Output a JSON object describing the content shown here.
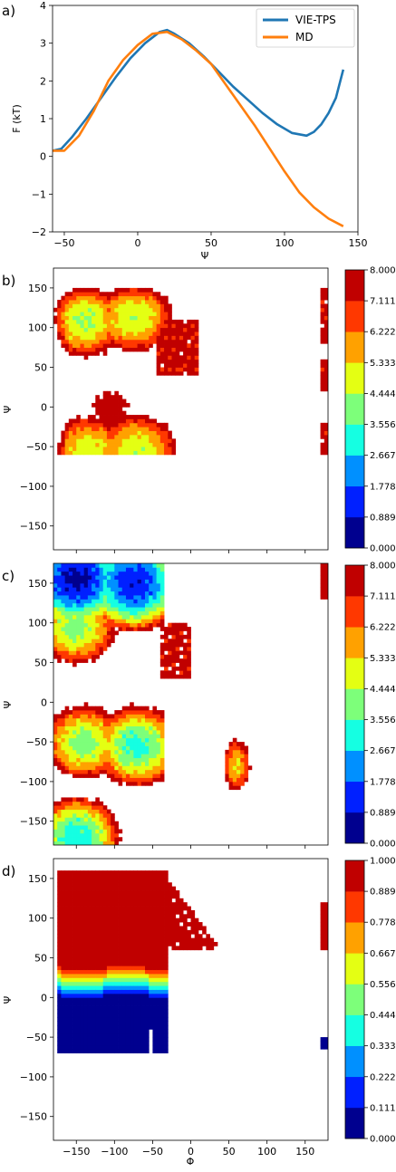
{
  "panel_labels": [
    "a)",
    "b)",
    "c)",
    "d)"
  ],
  "chart_data": [
    {
      "type": "line",
      "panel": "a)",
      "xlabel": "Ψ",
      "ylabel": "F (kT)",
      "xlim": [
        -58,
        150
      ],
      "ylim": [
        -2,
        4
      ],
      "xticks": [
        "−50",
        "0",
        "50",
        "100",
        "150"
      ],
      "yticks": [
        "−2",
        "−1",
        "0",
        "1",
        "2",
        "3",
        "4"
      ],
      "legend": "top-right",
      "series": [
        {
          "name": "VIE-TPS",
          "color": "#1f77b4",
          "x": [
            -58,
            -52,
            -45,
            -35,
            -25,
            -15,
            -5,
            5,
            15,
            20,
            25,
            35,
            45,
            55,
            65,
            75,
            85,
            95,
            105,
            115,
            120,
            125,
            130,
            135,
            140
          ],
          "y": [
            0.15,
            0.2,
            0.5,
            1.0,
            1.55,
            2.1,
            2.6,
            3.0,
            3.3,
            3.35,
            3.25,
            3.0,
            2.65,
            2.25,
            1.85,
            1.5,
            1.15,
            0.85,
            0.62,
            0.55,
            0.65,
            0.85,
            1.15,
            1.55,
            2.3
          ]
        },
        {
          "name": "MD",
          "color": "#ff7f0e",
          "x": [
            -58,
            -50,
            -40,
            -30,
            -20,
            -10,
            0,
            10,
            20,
            30,
            40,
            50,
            60,
            70,
            80,
            90,
            100,
            110,
            120,
            130,
            140
          ],
          "y": [
            0.15,
            0.15,
            0.55,
            1.2,
            2.0,
            2.55,
            2.95,
            3.25,
            3.3,
            3.1,
            2.8,
            2.45,
            1.9,
            1.35,
            0.8,
            0.2,
            -0.4,
            -0.95,
            -1.35,
            -1.65,
            -1.85
          ]
        }
      ]
    },
    {
      "type": "heatmap",
      "panel": "b)",
      "ylabel": "Ψ",
      "xlim": [
        -180,
        180
      ],
      "ylim": [
        -180,
        175
      ],
      "yticks": [
        "150",
        "100",
        "50",
        "0",
        "−50",
        "−100",
        "−150"
      ],
      "colorbar": {
        "min": 0,
        "max": 8,
        "levels": [
          "0.000",
          "0.889",
          "1.778",
          "2.667",
          "3.556",
          "4.444",
          "5.333",
          "6.222",
          "7.111",
          "8.000"
        ]
      },
      "minima": [
        {
          "phi": -140,
          "psi": 110,
          "depth": 4.3
        },
        {
          "phi": -75,
          "psi": 115,
          "depth": 4.5
        },
        {
          "phi": -105,
          "psi": 0,
          "depth": 7.4
        },
        {
          "phi": -135,
          "psi": -55,
          "depth": 4.8
        },
        {
          "phi": -70,
          "psi": -55,
          "depth": 4.5
        }
      ]
    },
    {
      "type": "heatmap",
      "panel": "c)",
      "ylabel": "Ψ",
      "xlim": [
        -180,
        180
      ],
      "ylim": [
        -180,
        175
      ],
      "yticks": [
        "150",
        "100",
        "50",
        "0",
        "−50",
        "−100",
        "−150"
      ],
      "colorbar": {
        "min": 0,
        "max": 8,
        "levels": [
          "0.000",
          "0.889",
          "1.778",
          "2.667",
          "3.556",
          "4.444",
          "5.333",
          "6.222",
          "7.111",
          "8.000"
        ]
      },
      "minima": [
        {
          "phi": -150,
          "psi": 155,
          "depth": 0.6
        },
        {
          "phi": -75,
          "psi": 150,
          "depth": 1.0
        },
        {
          "phi": -150,
          "psi": 95,
          "depth": 4.0
        },
        {
          "phi": -70,
          "psi": -55,
          "depth": 3.2
        },
        {
          "phi": -140,
          "psi": -50,
          "depth": 4.0
        },
        {
          "phi": 60,
          "psi": -80,
          "depth": 5.3
        },
        {
          "phi": -150,
          "psi": -170,
          "depth": 3.0
        }
      ]
    },
    {
      "type": "heatmap",
      "panel": "d)",
      "xlabel": "Φ",
      "ylabel": "Ψ",
      "xlim": [
        -180,
        180
      ],
      "ylim": [
        -180,
        175
      ],
      "xticks": [
        "−150",
        "−100",
        "−50",
        "0",
        "50",
        "100",
        "150"
      ],
      "yticks": [
        "150",
        "100",
        "50",
        "0",
        "−50",
        "−100",
        "−150"
      ],
      "colorbar": {
        "min": 0,
        "max": 1,
        "levels": [
          "0.000",
          "0.111",
          "0.222",
          "0.333",
          "0.444",
          "0.556",
          "0.667",
          "0.778",
          "0.889",
          "1.000"
        ]
      },
      "boundary_psi": 20
    }
  ],
  "colormap": [
    "#00008f",
    "#0020ff",
    "#0090ff",
    "#15ffe2",
    "#7dff7a",
    "#e4ff13",
    "#ffa100",
    "#ff3800",
    "#c00000"
  ]
}
